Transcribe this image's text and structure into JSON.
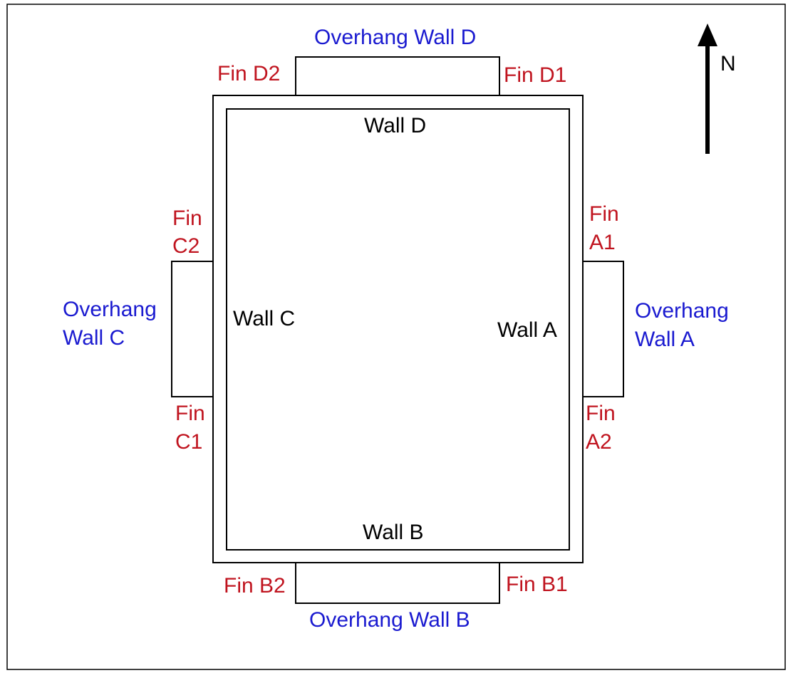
{
  "walls": {
    "a": "Wall A",
    "b": "Wall B",
    "c": "Wall C",
    "d": "Wall D"
  },
  "overhangs": {
    "a_line1": "Overhang",
    "a_line2": "Wall A",
    "b": "Overhang Wall B",
    "c_line1": "Overhang",
    "c_line2": "Wall C",
    "d": "Overhang Wall D"
  },
  "fins": {
    "a1_line1": "Fin",
    "a1_line2": "A1",
    "a2_line1": "Fin",
    "a2_line2": "A2",
    "b1": "Fin B1",
    "b2": "Fin B2",
    "c1_line1": "Fin",
    "c1_line2": "C1",
    "c2_line1": "Fin",
    "c2_line2": "C2",
    "d1": "Fin D1",
    "d2": "Fin D2"
  },
  "compass": {
    "label": "N"
  },
  "colors": {
    "fin_text": "#c0141f",
    "overhang_text": "#1a1ad0",
    "wall_text": "#000000",
    "lines": "#000000"
  }
}
